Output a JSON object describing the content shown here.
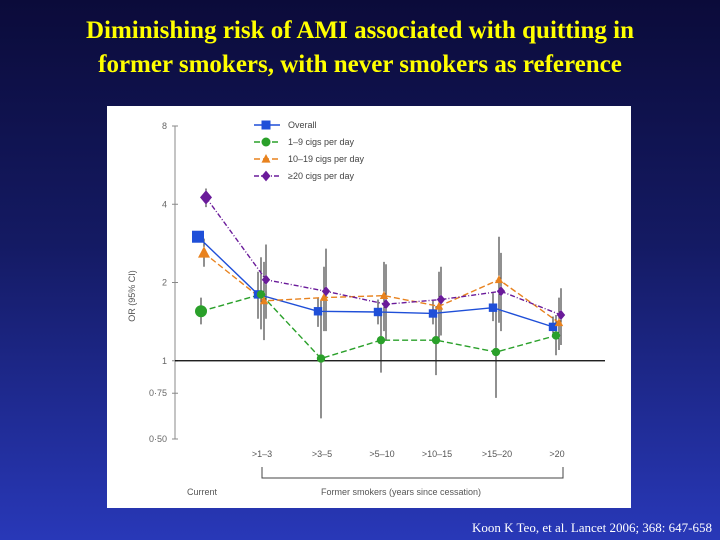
{
  "slide": {
    "title_line1": "Diminishing risk of AMI associated with quitting in",
    "title_line2": "former smokers, with never smokers as reference",
    "citation": "Koon K Teo, et al. Lancet 2006; 368: 647-658",
    "background_top": "#0b0b3a",
    "background_bottom": "#2838b8",
    "title_color": "#ffff00"
  },
  "chart_data": {
    "type": "line",
    "ylabel": "OR (95% CI)",
    "y_scale": "log",
    "ylim": [
      0.5,
      8
    ],
    "yticks": [
      {
        "value": 8,
        "label": "8"
      },
      {
        "value": 4,
        "label": "4"
      },
      {
        "value": 2,
        "label": "2"
      },
      {
        "value": 1,
        "label": "1"
      },
      {
        "value": 0.75,
        "label": "0·75"
      },
      {
        "value": 0.5,
        "label": "0·50"
      }
    ],
    "categories": [
      "Current",
      ">1–3",
      ">3–5",
      ">5–10",
      ">10–15",
      ">15–20",
      ">20"
    ],
    "former_label": "Former smokers  (years since cessation)",
    "legend_position": "top-left",
    "series": [
      {
        "name": "Overall",
        "color": "#1f4fd8",
        "marker": "square",
        "dash": "solid",
        "values": [
          3.0,
          1.8,
          1.55,
          1.54,
          1.52,
          1.6,
          1.35
        ],
        "ci_low": [
          null,
          1.45,
          1.35,
          1.38,
          1.38,
          1.42,
          1.25
        ],
        "ci_high": [
          null,
          2.2,
          1.75,
          1.72,
          1.7,
          1.82,
          1.48
        ]
      },
      {
        "name": "1–9 cigs per day",
        "color": "#2aa02a",
        "marker": "circle",
        "dash": "dashed",
        "values": [
          1.55,
          1.8,
          1.02,
          1.2,
          1.2,
          1.08,
          1.25
        ],
        "ci_low": [
          1.38,
          1.32,
          0.6,
          0.9,
          0.88,
          0.72,
          1.05
        ],
        "ci_high": [
          1.75,
          2.5,
          1.7,
          1.6,
          1.62,
          1.65,
          1.5
        ]
      },
      {
        "name": "10–19 cigs per day",
        "color": "#e8821e",
        "marker": "triangle",
        "dash": "dashed",
        "values": [
          2.6,
          1.7,
          1.75,
          1.78,
          1.62,
          2.05,
          1.4
        ],
        "ci_low": [
          2.3,
          1.2,
          1.3,
          1.3,
          1.2,
          1.4,
          1.1
        ],
        "ci_high": [
          2.95,
          2.4,
          2.3,
          2.4,
          2.2,
          3.0,
          1.75
        ]
      },
      {
        "name": "≥20 cigs per day",
        "color": "#6a1b9a",
        "marker": "diamond",
        "dash": "dashdot",
        "values": [
          4.25,
          2.05,
          1.85,
          1.65,
          1.72,
          1.85,
          1.5
        ],
        "ci_low": [
          3.9,
          1.45,
          1.3,
          1.2,
          1.25,
          1.3,
          1.15
        ],
        "ci_high": [
          4.6,
          2.8,
          2.7,
          2.35,
          2.3,
          2.6,
          1.9
        ]
      }
    ]
  }
}
